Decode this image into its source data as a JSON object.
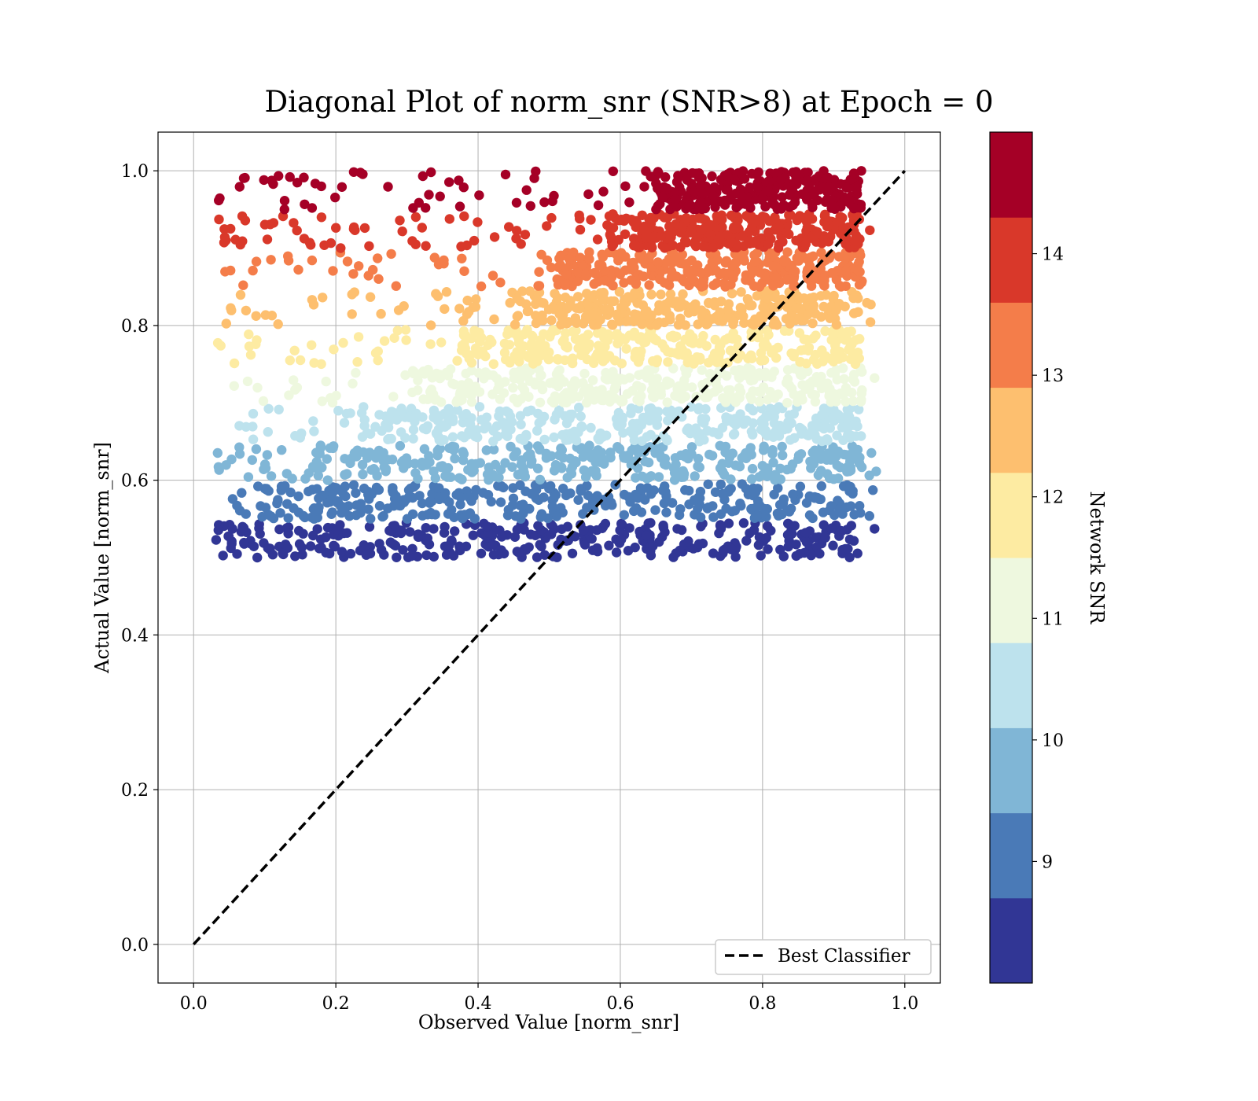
{
  "chart_data": {
    "type": "scatter",
    "title": "Diagonal Plot of norm_snr (SNR>8) at Epoch = 0",
    "xlabel": "Observed Value [norm_snr]",
    "ylabel": "Actual Value [norm_snr]",
    "xlim": [
      -0.05,
      1.05
    ],
    "ylim": [
      -0.05,
      1.05
    ],
    "x_ticks": [
      "0.0",
      "0.2",
      "0.4",
      "0.6",
      "0.8",
      "1.0"
    ],
    "y_ticks": [
      "0.0",
      "0.2",
      "0.4",
      "0.6",
      "0.8",
      "1.0"
    ],
    "grid": true,
    "legend_position": "lower-right",
    "series": [
      {
        "name": "Best Classifier",
        "type": "line",
        "style": "dashed",
        "color": "#000000",
        "x": [
          0.0,
          1.0
        ],
        "y": [
          0.0,
          1.0
        ]
      }
    ],
    "bands": [
      {
        "snr": 8.5,
        "y_range": [
          0.5,
          0.545
        ],
        "color": "#313695"
      },
      {
        "snr": 9.0,
        "y_range": [
          0.55,
          0.595
        ],
        "color": "#4a7ab7"
      },
      {
        "snr": 9.5,
        "y_range": [
          0.6,
          0.645
        ],
        "color": "#80b6d6"
      },
      {
        "snr": 10.0,
        "y_range": [
          0.65,
          0.695
        ],
        "color": "#bde2ed"
      },
      {
        "snr": 11.0,
        "y_range": [
          0.7,
          0.745
        ],
        "color": "#eef8df"
      },
      {
        "snr": 12.0,
        "y_range": [
          0.75,
          0.795
        ],
        "color": "#fdeba2"
      },
      {
        "snr": 12.5,
        "y_range": [
          0.8,
          0.845
        ],
        "color": "#fdbf6f"
      },
      {
        "snr": 13.5,
        "y_range": [
          0.85,
          0.895
        ],
        "color": "#f47d4a"
      },
      {
        "snr": 14.0,
        "y_range": [
          0.9,
          0.945
        ],
        "color": "#d9382a"
      },
      {
        "snr": 14.5,
        "y_range": [
          0.95,
          1.0
        ],
        "color": "#a50026"
      }
    ],
    "colorbar": {
      "label": "Network SNR",
      "range": [
        8.0,
        15.0
      ],
      "ticks": [
        "9",
        "10",
        "11",
        "12",
        "13",
        "14"
      ],
      "colors": [
        "#313695",
        "#4a7ab7",
        "#80b6d6",
        "#bde2ed",
        "#eef8df",
        "#fdeba2",
        "#fdbf6f",
        "#f47d4a",
        "#d9382a",
        "#a50026"
      ]
    }
  }
}
